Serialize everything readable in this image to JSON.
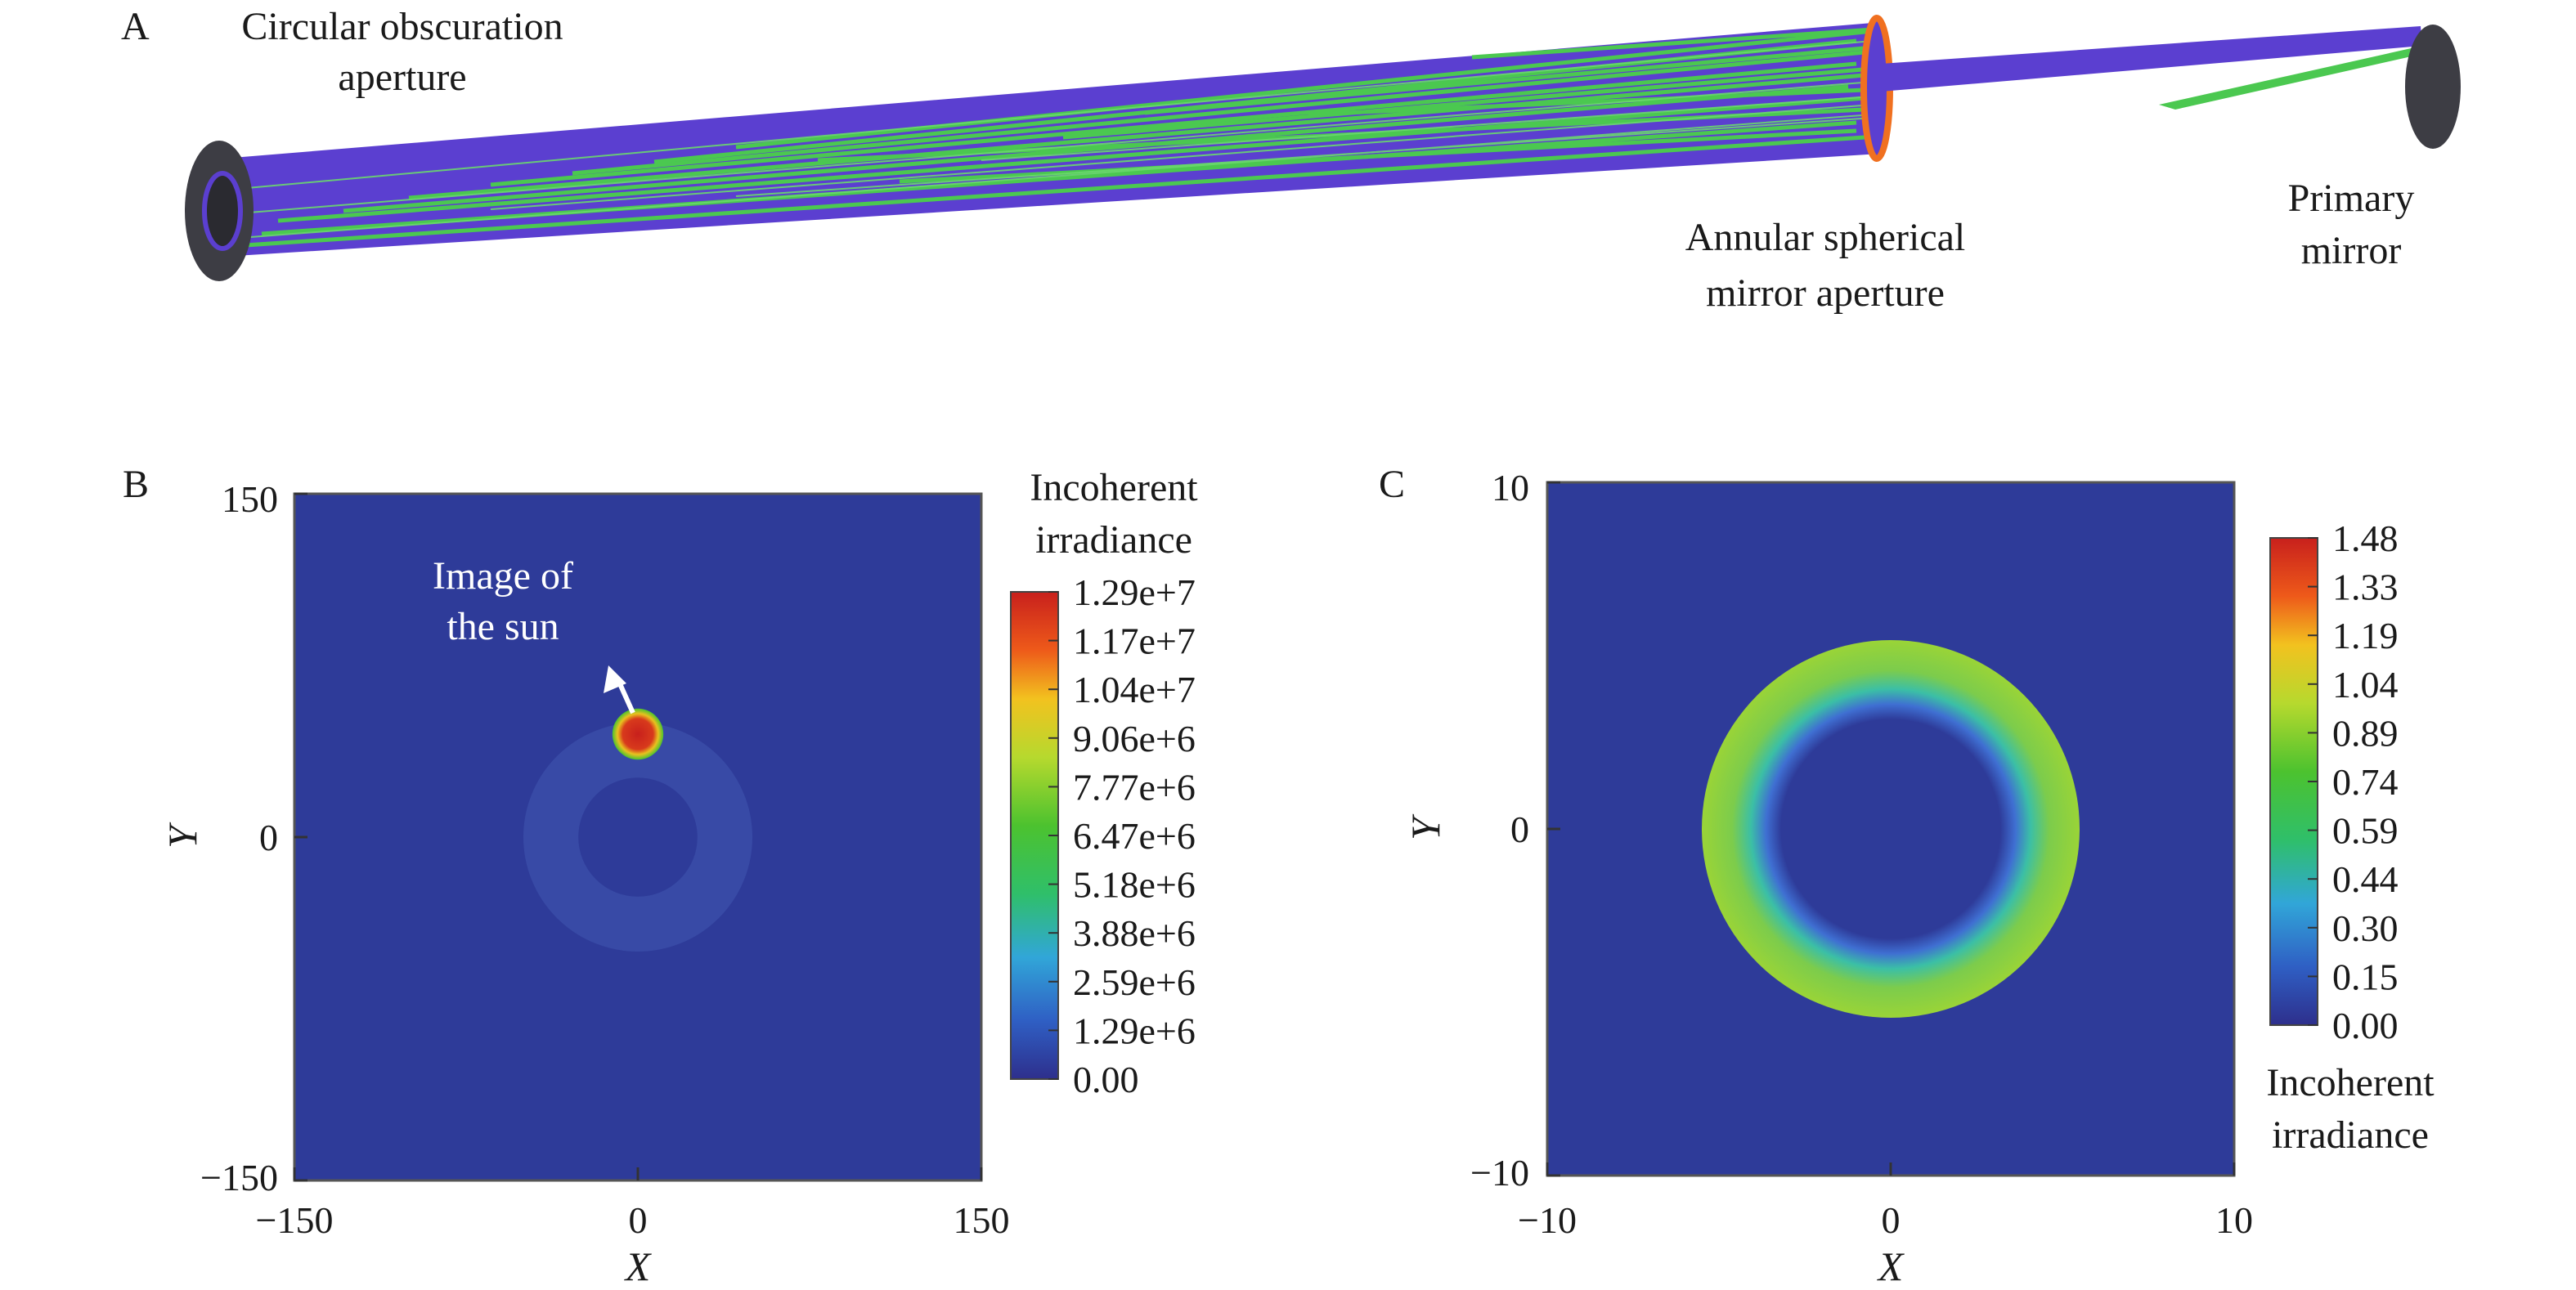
{
  "panel_a": {
    "letter": "A",
    "labels": {
      "circular_obscuration_line1": "Circular obscuration",
      "circular_obscuration_line2": "aperture",
      "annular_line1": "Annular spherical",
      "annular_line2": "mirror aperture",
      "primary_line1": "Primary",
      "primary_line2": "mirror"
    },
    "colors": {
      "beam": "#5b3fd0",
      "ray": "#4bc850",
      "housing": "#3d3d44",
      "rim": "#f07020"
    }
  },
  "chart_data": [
    {
      "type": "heatmap",
      "panel": "B",
      "xlabel": "X",
      "ylabel": "Y",
      "xlim": [
        -150,
        150
      ],
      "ylim": [
        -150,
        150
      ],
      "x_ticks": [
        "−150",
        "0",
        "150"
      ],
      "y_ticks": [
        "150",
        "0",
        "−150"
      ],
      "annotation_line1": "Image of",
      "annotation_line2": "the sun",
      "colorbar": {
        "title_line1": "Incoherent",
        "title_line2": "irradiance",
        "ticks": [
          "1.29e+7",
          "1.17e+7",
          "1.04e+7",
          "9.06e+6",
          "7.77e+6",
          "6.47e+6",
          "5.18e+6",
          "3.88e+6",
          "2.59e+6",
          "1.29e+6",
          "0.00"
        ],
        "max": 12900000,
        "min": 0
      },
      "features": {
        "sun_image": {
          "x": 0,
          "y": 45,
          "radius": 9
        },
        "faint_ring": {
          "center_x": 0,
          "center_y": 0,
          "inner_radius": 26,
          "outer_radius": 50
        }
      }
    },
    {
      "type": "heatmap",
      "panel": "C",
      "xlabel": "X",
      "ylabel": "Y",
      "xlim": [
        -10,
        10
      ],
      "ylim": [
        -10,
        10
      ],
      "x_ticks": [
        "−10",
        "0",
        "10"
      ],
      "y_ticks": [
        "10",
        "0",
        "−10"
      ],
      "colorbar": {
        "title_line1": "Incoherent",
        "title_line2": "irradiance",
        "ticks": [
          "1.48",
          "1.33",
          "1.19",
          "1.04",
          "0.89",
          "0.74",
          "0.59",
          "0.44",
          "0.30",
          "0.15",
          "0.00"
        ],
        "max": 1.48,
        "min": 0
      },
      "features": {
        "ring": {
          "center_x": 0,
          "center_y": 0,
          "inner_radius": 3.5,
          "outer_radius": 5.5
        }
      }
    }
  ]
}
